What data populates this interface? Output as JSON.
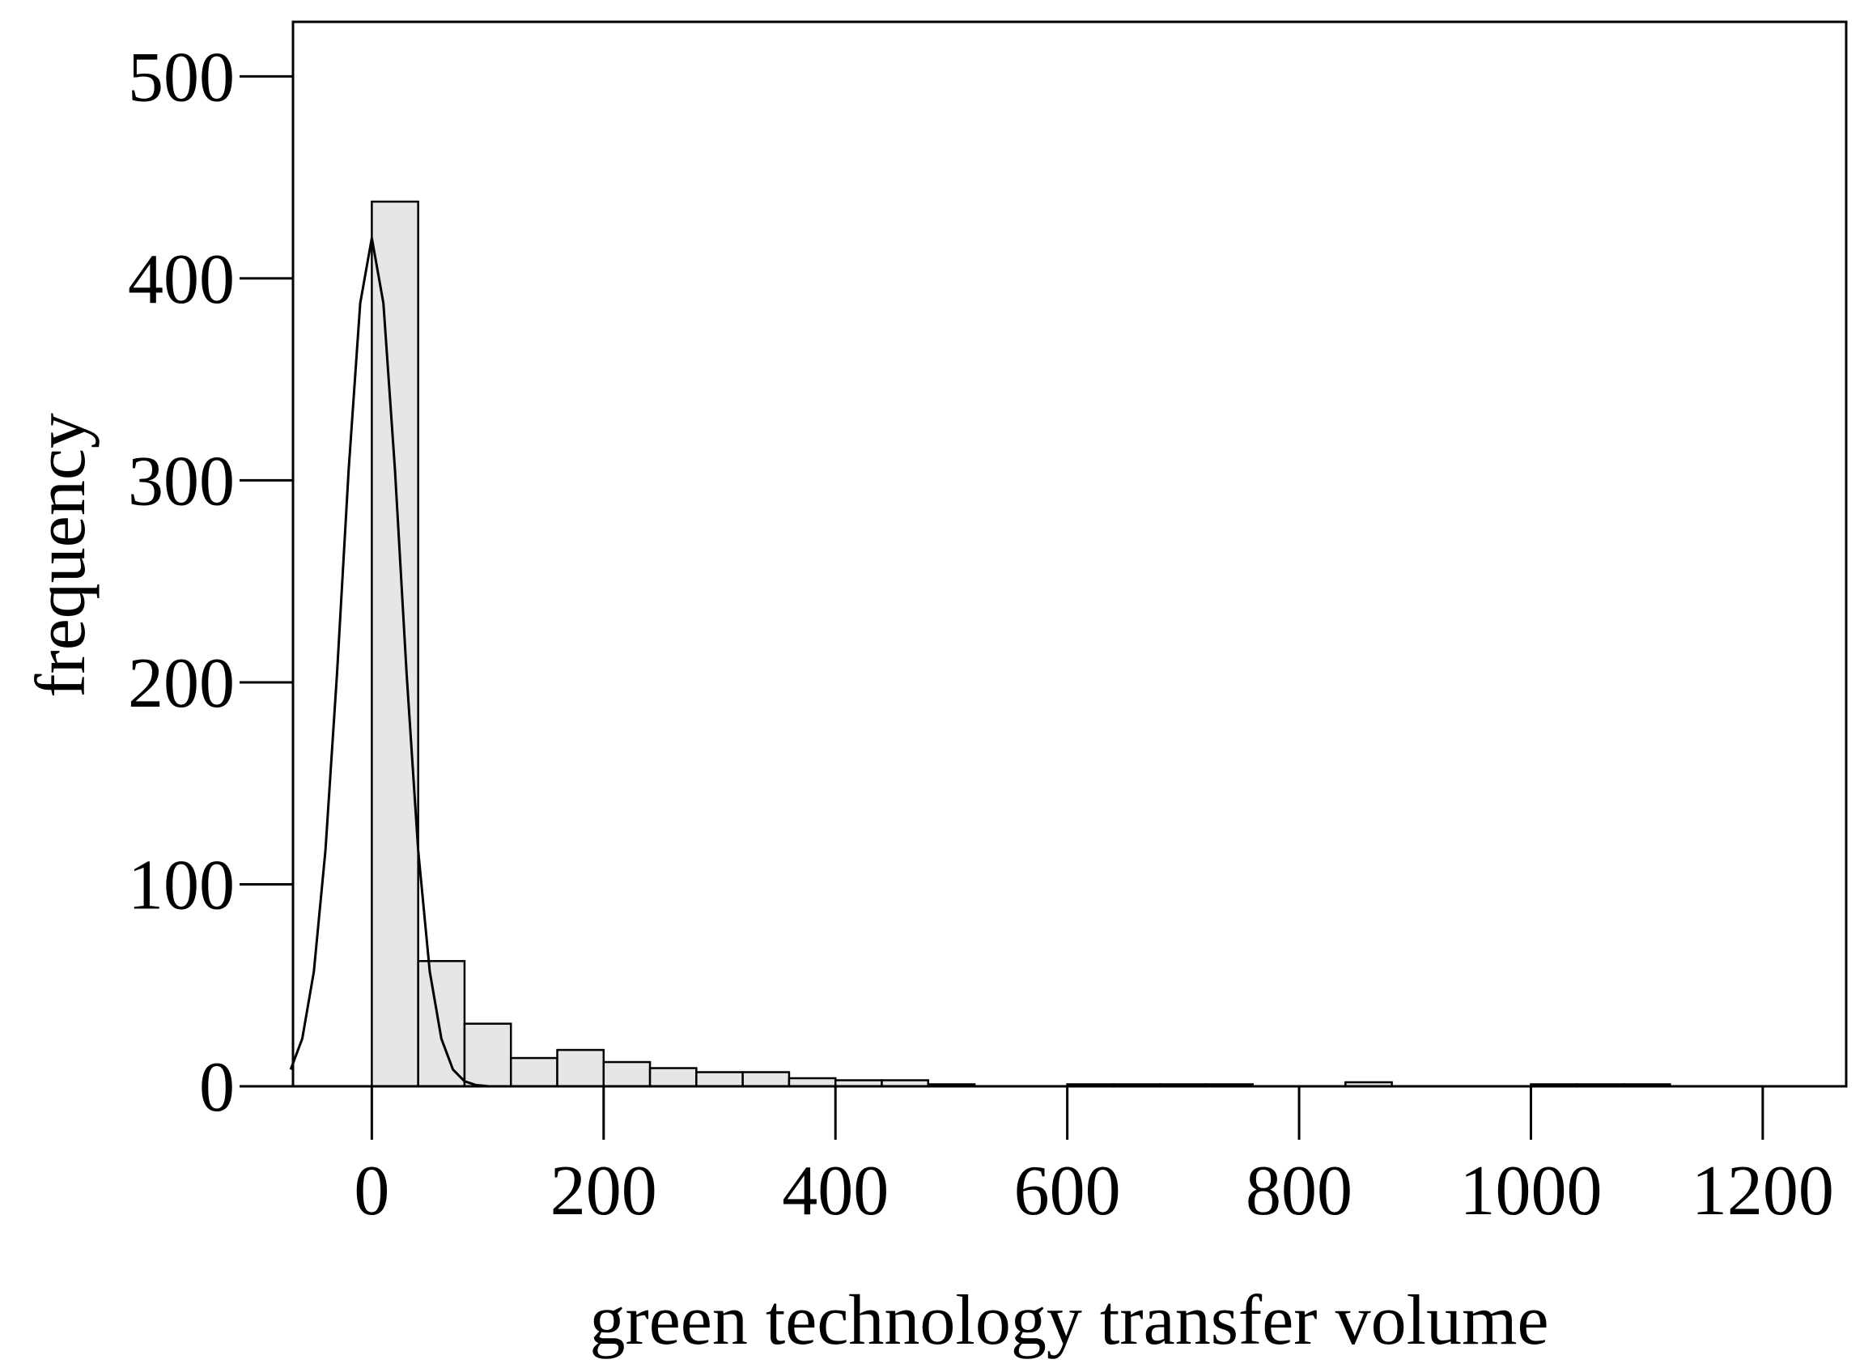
{
  "chart_data": {
    "type": "histogram",
    "xlabel": "green technology transfer volume",
    "ylabel": "frequency",
    "bins": [
      0,
      40,
      80,
      120,
      160,
      200,
      240,
      280,
      320,
      360,
      400,
      440,
      480,
      520,
      560,
      600,
      640,
      680,
      720,
      760,
      800,
      840,
      880,
      920,
      960,
      1000,
      1040,
      1080,
      1120
    ],
    "counts": [
      438,
      62,
      31,
      14,
      18,
      12,
      9,
      7,
      7,
      4,
      3,
      3,
      1,
      0,
      0,
      1,
      1,
      1,
      1,
      0,
      0,
      2,
      0,
      0,
      0,
      1,
      1,
      1
    ],
    "color": "#e6e6e6",
    "curve": {
      "x": [
        -70,
        -60,
        -50,
        -40,
        -30,
        -20,
        -10,
        0,
        10,
        20,
        30,
        40,
        50,
        60,
        70,
        80,
        90,
        100
      ],
      "values": [
        8.3,
        23.6,
        56.8,
        116.8,
        204.5,
        305,
        387.7,
        420,
        387.7,
        305,
        204.5,
        116.8,
        56.8,
        23.6,
        8.3,
        2.5,
        0.6,
        0.1
      ],
      "color": "#000000"
    },
    "xlim": [
      -68,
      1272
    ],
    "ylim": [
      0,
      527
    ],
    "xticks": [
      0,
      200,
      400,
      600,
      800,
      1000,
      1200
    ],
    "yticks": [
      0,
      100,
      200,
      300,
      400,
      500
    ]
  }
}
